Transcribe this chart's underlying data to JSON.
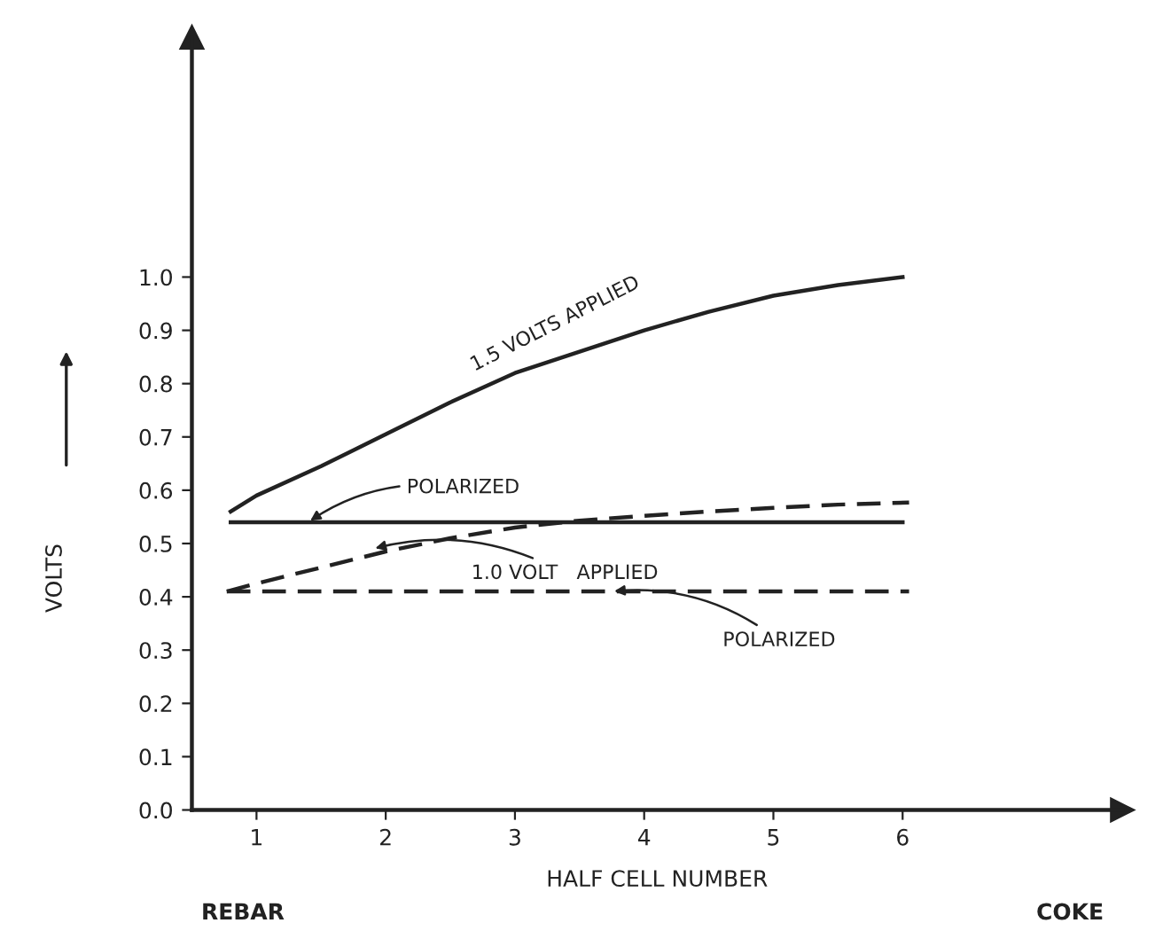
{
  "chart_data": {
    "type": "line",
    "xlabel": "HALF CELL NUMBER",
    "ylabel": "VOLTS",
    "xlim": [
      0.5,
      7.7
    ],
    "ylim": [
      0,
      1.45
    ],
    "xticks": [
      1,
      2,
      3,
      4,
      5,
      6
    ],
    "yticks": [
      {
        "value": 0,
        "label": "0.0"
      },
      {
        "value": 0.1,
        "label": "0.1"
      },
      {
        "value": 0.2,
        "label": "0.2"
      },
      {
        "value": 0.3,
        "label": "0.3"
      },
      {
        "value": 0.4,
        "label": "0.4"
      },
      {
        "value": 0.5,
        "label": "0.5"
      },
      {
        "value": 0.6,
        "label": "0.6"
      },
      {
        "value": 0.7,
        "label": "0.7"
      },
      {
        "value": 0.8,
        "label": "0.8"
      },
      {
        "value": 0.9,
        "label": "0.9"
      },
      {
        "value": 1.0,
        "label": "1.0"
      }
    ],
    "grid": false,
    "marker": "none",
    "series": [
      {
        "color": "#222222",
        "line_style": "solid",
        "x": [
          0.8,
          1,
          1.5,
          2,
          2.5,
          3,
          3.5,
          4,
          4.5,
          5,
          5.5,
          6
        ],
        "values": [
          0.56,
          0.59,
          0.645,
          0.705,
          0.765,
          0.82,
          0.86,
          0.9,
          0.935,
          0.965,
          0.985,
          1.0
        ]
      },
      {
        "color": "#222222",
        "line_style": "solid",
        "x": [
          0.8,
          6
        ],
        "values": [
          0.54,
          0.54
        ]
      },
      {
        "color": "#222222",
        "line_style": "dashed",
        "x": [
          0.77,
          1,
          1.5,
          2,
          2.5,
          3,
          3.5,
          4,
          4.5,
          5,
          5.5,
          6.05
        ],
        "values": [
          0.41,
          0.425,
          0.455,
          0.485,
          0.51,
          0.53,
          0.543,
          0.552,
          0.56,
          0.567,
          0.573,
          0.577
        ]
      },
      {
        "color": "#222222",
        "line_style": "dashed",
        "x": [
          0.77,
          6.05
        ],
        "values": [
          0.41,
          0.41
        ]
      }
    ],
    "annotations": [
      {
        "text": "1.5 VOLTS APPLIED",
        "x": 2.9,
        "y": 0.81
      },
      {
        "text": "POLARIZED",
        "x": 1.4,
        "y": 0.54
      },
      {
        "text": "1.0 VOLT   APPLIED",
        "x": 1.9,
        "y": 0.49
      },
      {
        "text": "POLARIZED",
        "x": 3.75,
        "y": 0.41
      },
      "REBAR",
      "COKE"
    ]
  }
}
